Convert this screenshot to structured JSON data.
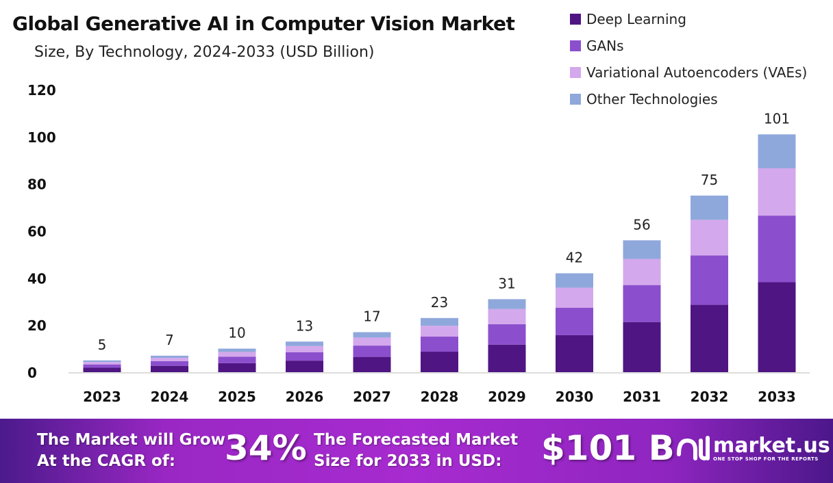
{
  "chart_data": {
    "type": "bar",
    "stacked": true,
    "title": "Global Generative AI in Computer Vision Market",
    "subtitle": "Size, By Technology, 2024-2033 (USD Billion)",
    "categories": [
      "2023",
      "2024",
      "2025",
      "2026",
      "2027",
      "2028",
      "2029",
      "2030",
      "2031",
      "2032",
      "2033"
    ],
    "series": [
      {
        "name": "Deep Learning",
        "color": "#4f1582",
        "values": [
          1.9,
          2.7,
          3.8,
          4.9,
          6.5,
          8.7,
          11.7,
          15.7,
          21.3,
          28.6,
          38.2
        ]
      },
      {
        "name": "GANs",
        "color": "#8b4fcd",
        "values": [
          1.4,
          2.0,
          2.8,
          3.6,
          4.8,
          6.4,
          8.7,
          11.7,
          15.7,
          21.0,
          28.3
        ]
      },
      {
        "name": "Variational Autoencoders (VAEs)",
        "color": "#d4a8ec",
        "values": [
          1.0,
          1.4,
          2.0,
          2.6,
          3.4,
          4.6,
          6.4,
          8.5,
          11.1,
          15.1,
          20.1
        ]
      },
      {
        "name": "Other Technologies",
        "color": "#8fa8dc",
        "values": [
          0.7,
          0.9,
          1.4,
          1.9,
          2.3,
          3.3,
          4.2,
          6.1,
          7.9,
          10.3,
          14.4
        ]
      }
    ],
    "totals": [
      "5",
      "7",
      "10",
      "13",
      "17",
      "23",
      "31",
      "42",
      "56",
      "75",
      "101"
    ],
    "yticks": [
      "0",
      "20",
      "40",
      "60",
      "80",
      "100",
      "120"
    ],
    "ylim": [
      0,
      120
    ],
    "grid": false,
    "legend": "top-right"
  },
  "footer": {
    "cagr_text_1": "The Market will Grow",
    "cagr_text_2": "At the CAGR of:",
    "cagr_value": "34%",
    "forecast_text_1": "The Forecasted Market",
    "forecast_text_2": "Size for 2033 in USD:",
    "forecast_value": "$101 B",
    "logo_name": "market.us",
    "logo_tagline": "ONE STOP SHOP FOR THE REPORTS"
  }
}
